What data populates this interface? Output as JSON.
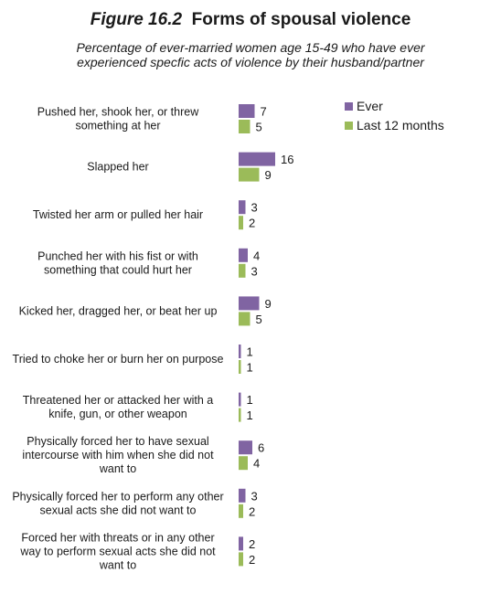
{
  "title": {
    "figure": "Figure 16.2",
    "text": "Forms of spousal violence"
  },
  "subtitle": "Percentage of ever-married women age 15-49 who have ever experienced specfic acts of violence by their husband/partner",
  "colors": {
    "ever": "#8064a2",
    "last12": "#9bbb59"
  },
  "chart_data": {
    "type": "bar",
    "orientation": "horizontal",
    "categories": [
      "Pushed her, shook her, or threw something at her",
      "Slapped her",
      "Twisted her arm or pulled her hair",
      "Punched her with his fist or with something that could hurt her",
      "Kicked her, dragged her, or beat her up",
      "Tried to choke her or burn her on purpose",
      "Threatened her or attacked her with a knife, gun, or other weapon",
      "Physically forced her to have sexual intercourse with him when she did not want to",
      "Physically forced her to perform any other sexual acts she did not want to",
      "Forced her with threats or in any other way to perform sexual acts she did not want to"
    ],
    "series": [
      {
        "name": "Ever",
        "values": [
          7,
          16,
          3,
          4,
          9,
          1,
          1,
          6,
          3,
          2
        ]
      },
      {
        "name": "Last 12 months",
        "values": [
          5,
          9,
          2,
          3,
          5,
          1,
          1,
          4,
          2,
          2
        ]
      }
    ],
    "legend_position": "top-right",
    "grid": false
  }
}
